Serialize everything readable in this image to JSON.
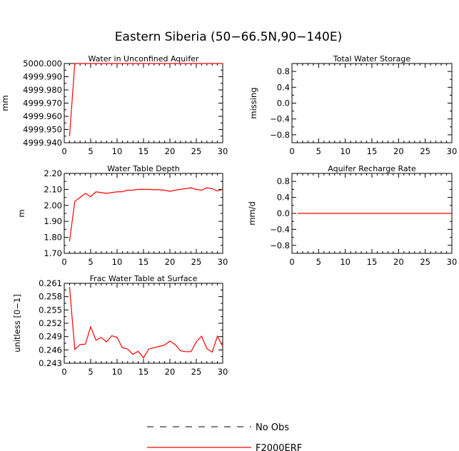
{
  "chart_data": {
    "title": "Eastern Siberia (50−66.5N,90−140E)",
    "panels": [
      {
        "id": "water-unconfined",
        "type": "line",
        "title": "Water in Unconfined Aquifer",
        "ylabel": "mm",
        "xlim": [
          0,
          30
        ],
        "ylim": [
          4999.94,
          5000.0
        ],
        "xticks": [
          0,
          5,
          10,
          15,
          20,
          25,
          30
        ],
        "yticks": [
          4999.94,
          4999.95,
          4999.96,
          4999.97,
          4999.98,
          4999.99,
          5000.0
        ],
        "ytick_labels": [
          "4999.940",
          "4999.950",
          "4999.960",
          "4999.970",
          "4999.980",
          "4999.990",
          "5000.000"
        ],
        "series": [
          {
            "name": "F2000ERF",
            "x": [
              1,
              2,
              3,
              4,
              5,
              6,
              7,
              8,
              9,
              10,
              11,
              12,
              13,
              14,
              15,
              16,
              17,
              18,
              19,
              20,
              21,
              22,
              23,
              24,
              25,
              26,
              27,
              28,
              29,
              30
            ],
            "y": [
              4999.945,
              5000.0,
              5000.0,
              5000.0,
              5000.0,
              5000.0,
              5000.0,
              5000.0,
              5000.0,
              5000.0,
              5000.0,
              5000.0,
              5000.0,
              5000.0,
              5000.0,
              5000.0,
              5000.0,
              5000.0,
              5000.0,
              5000.0,
              5000.0,
              5000.0,
              5000.0,
              5000.0,
              5000.0,
              5000.0,
              5000.0,
              5000.0,
              5000.0,
              5000.0
            ]
          }
        ]
      },
      {
        "id": "total-water-storage",
        "type": "line",
        "title": "Total Water Storage",
        "ylabel": "missing",
        "xlim": [
          0,
          30
        ],
        "ylim": [
          -1.0,
          1.0
        ],
        "xticks": [
          0,
          5,
          10,
          15,
          20,
          25,
          30
        ],
        "yticks": [
          -0.8,
          -0.4,
          0.0,
          0.4,
          0.8
        ],
        "ytick_labels": [
          "−0.8",
          "−0.4",
          "0.0",
          "0.4",
          "0.8"
        ],
        "series": []
      },
      {
        "id": "water-table-depth",
        "type": "line",
        "title": "Water Table Depth",
        "ylabel": "m",
        "xlim": [
          0,
          30
        ],
        "ylim": [
          1.7,
          2.2
        ],
        "xticks": [
          0,
          5,
          10,
          15,
          20,
          25,
          30
        ],
        "yticks": [
          1.7,
          1.8,
          1.9,
          2.0,
          2.1,
          2.2
        ],
        "ytick_labels": [
          "1.70",
          "1.80",
          "1.90",
          "2.00",
          "2.10",
          "2.20"
        ],
        "series": [
          {
            "name": "F2000ERF",
            "x": [
              1,
              2,
              3,
              4,
              5,
              6,
              7,
              8,
              9,
              10,
              11,
              12,
              13,
              14,
              15,
              16,
              17,
              18,
              19,
              20,
              21,
              22,
              23,
              24,
              25,
              26,
              27,
              28,
              29,
              30
            ],
            "y": [
              1.775,
              2.025,
              2.05,
              2.075,
              2.055,
              2.085,
              2.08,
              2.075,
              2.08,
              2.085,
              2.085,
              2.095,
              2.095,
              2.1,
              2.1,
              2.1,
              2.098,
              2.098,
              2.095,
              2.088,
              2.095,
              2.1,
              2.105,
              2.11,
              2.1,
              2.095,
              2.11,
              2.105,
              2.09,
              2.1
            ]
          }
        ]
      },
      {
        "id": "aquifer-recharge",
        "type": "line",
        "title": "Aquifer Recharge Rate",
        "ylabel": "mm/d",
        "xlim": [
          0,
          30
        ],
        "ylim": [
          -1.0,
          1.0
        ],
        "xticks": [
          0,
          5,
          10,
          15,
          20,
          25,
          30
        ],
        "yticks": [
          -0.8,
          -0.4,
          0.0,
          0.4,
          0.8
        ],
        "ytick_labels": [
          "−0.8",
          "−0.4",
          "0.0",
          "0.4",
          "0.8"
        ],
        "series": [
          {
            "name": "F2000ERF",
            "x": [
              1,
              30
            ],
            "y": [
              0.0,
              0.0
            ]
          }
        ]
      },
      {
        "id": "frac-water-table",
        "type": "line",
        "title": "Frac Water Table at Surface",
        "ylabel": "unitless [0−1]",
        "xlim": [
          0,
          30
        ],
        "ylim": [
          0.243,
          0.261
        ],
        "xticks": [
          0,
          5,
          10,
          15,
          20,
          25,
          30
        ],
        "yticks": [
          0.243,
          0.246,
          0.249,
          0.252,
          0.255,
          0.258,
          0.261
        ],
        "ytick_labels": [
          "0.243",
          "0.246",
          "0.249",
          "0.252",
          "0.255",
          "0.258",
          "0.261"
        ],
        "series": [
          {
            "name": "F2000ERF",
            "x": [
              1,
              2,
              3,
              4,
              5,
              6,
              7,
              8,
              9,
              10,
              11,
              12,
              13,
              14,
              15,
              16,
              17,
              18,
              19,
              20,
              21,
              22,
              23,
              24,
              25,
              26,
              27,
              28,
              29,
              30
            ],
            "y": [
              0.2602,
              0.2461,
              0.2472,
              0.2473,
              0.2512,
              0.2482,
              0.2488,
              0.2478,
              0.2492,
              0.2488,
              0.2465,
              0.2462,
              0.245,
              0.2457,
              0.2442,
              0.2462,
              0.2465,
              0.2468,
              0.2471,
              0.248,
              0.2472,
              0.2458,
              0.2456,
              0.2456,
              0.2478,
              0.2491,
              0.2463,
              0.2455,
              0.2491,
              0.2468
            ]
          }
        ]
      }
    ],
    "legend": [
      {
        "label": "No Obs",
        "style": "dashed",
        "color": "#000000"
      },
      {
        "label": "F2000ERF",
        "style": "solid",
        "color": "#ff0000"
      }
    ]
  }
}
